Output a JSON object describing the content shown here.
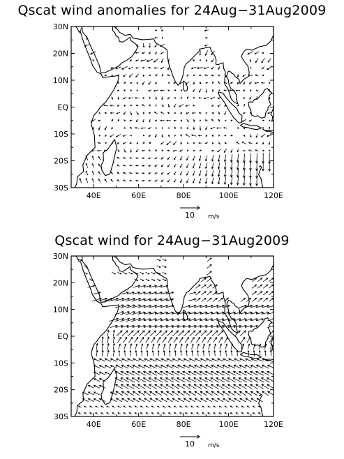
{
  "panels": [
    {
      "title": "Qscat wind anomalies for 24Aug−31Aug2009",
      "field": "anomaly",
      "lon_labels": [
        "40E",
        "60E",
        "80E",
        "100E",
        "120E"
      ],
      "lat_labels": [
        "30N",
        "20N",
        "10N",
        "EQ",
        "10S",
        "20S",
        "30S"
      ],
      "ref_vector": {
        "value": "10",
        "unit": "m/s"
      }
    },
    {
      "title": "Qscat wind for 24Aug−31Aug2009",
      "field": "total",
      "lon_labels": [
        "40E",
        "60E",
        "80E",
        "100E",
        "120E"
      ],
      "lat_labels": [
        "30N",
        "20N",
        "10N",
        "EQ",
        "10S",
        "20S",
        "30S"
      ],
      "ref_vector": {
        "value": "10",
        "unit": "m/s"
      }
    }
  ],
  "map_extent": {
    "lon_min": 30,
    "lon_max": 120,
    "lat_min": -30,
    "lat_max": 30
  },
  "colors": {
    "ink": "#000000",
    "background": "#ffffff"
  }
}
